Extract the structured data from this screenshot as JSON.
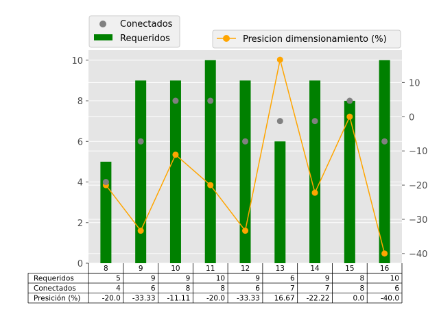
{
  "chart_data": {
    "type": "bar",
    "categories": [
      "8",
      "9",
      "10",
      "11",
      "12",
      "13",
      "14",
      "15",
      "16"
    ],
    "series": [
      {
        "name": "Requeridos",
        "type": "bar",
        "axis": "left",
        "color": "#008000",
        "values": [
          5,
          9,
          9,
          10,
          9,
          6,
          9,
          8,
          10
        ]
      },
      {
        "name": "Conectados",
        "type": "scatter",
        "axis": "left",
        "color": "#808080",
        "values": [
          4,
          6,
          8,
          8,
          6,
          7,
          7,
          8,
          6
        ]
      },
      {
        "name": "Presicion dimensionamiento (%)",
        "type": "line",
        "axis": "right",
        "color": "#ffa500",
        "values": [
          -20.0,
          -33.33,
          -11.11,
          -20.0,
          -33.33,
          16.67,
          -22.22,
          0.0,
          -40.0
        ]
      }
    ],
    "ylim_left": [
      0,
      10.5
    ],
    "yticks_left": [
      "0",
      "2",
      "4",
      "6",
      "8",
      "10"
    ],
    "ylim_right": [
      -42.83,
      19.5
    ],
    "yticks_right": [
      "10",
      "0",
      "−10",
      "−20",
      "−30",
      "−40"
    ],
    "grid": true,
    "background": "#e5e5e5",
    "legend_left": [
      "Conectados",
      "Requeridos"
    ],
    "legend_right": [
      "Presicion dimensionamiento (%)"
    ],
    "table": {
      "row_labels": [
        "Requeridos",
        "Conectados",
        "Presición (%)"
      ],
      "rows": [
        [
          "5",
          "9",
          "9",
          "10",
          "9",
          "6",
          "9",
          "8",
          "10"
        ],
        [
          "4",
          "6",
          "8",
          "8",
          "6",
          "7",
          "7",
          "8",
          "6"
        ],
        [
          "-20.0",
          "-33.33",
          "-11.11",
          "-20.0",
          "-33.33",
          "16.67",
          "-22.22",
          "0.0",
          "-40.0"
        ]
      ]
    }
  }
}
